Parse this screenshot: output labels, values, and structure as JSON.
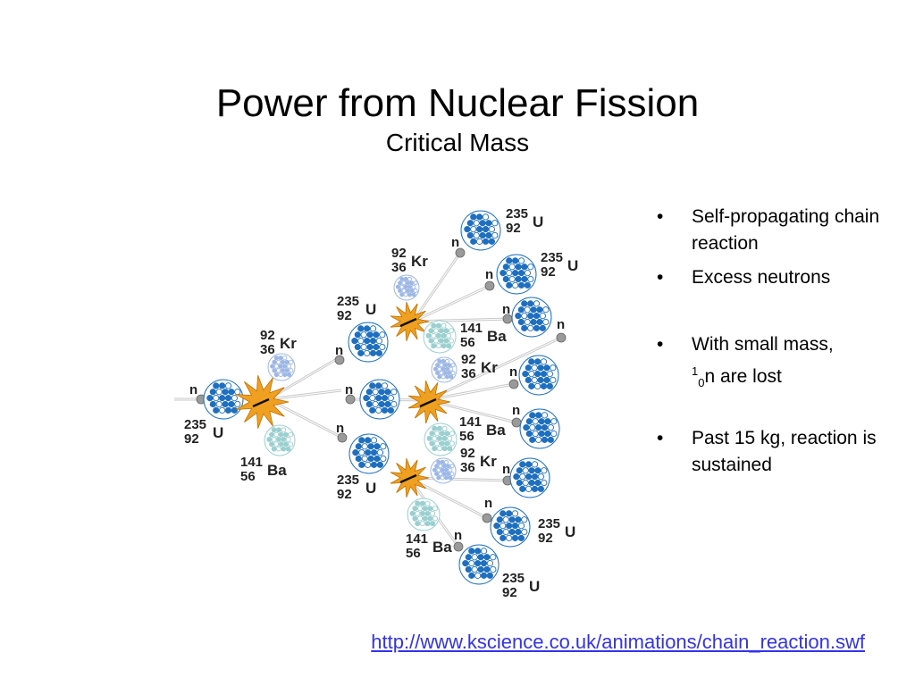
{
  "slide": {
    "title": "Power from Nuclear Fission",
    "subtitle": "Critical Mass",
    "link": "http://www.kscience.co.uk/animations/chain_reaction.swf"
  },
  "bullets": [
    {
      "text": "Self-propagating chain reaction"
    },
    {
      "text": "Excess neutrons"
    },
    {
      "pre": "With small mass, ",
      "sup": "1",
      "sub": "0",
      "post": "n are lost"
    },
    {
      "text": "Past 15 kg, reaction is sustained"
    }
  ],
  "diagram": {
    "neutron_label": "n",
    "uranium": {
      "mass": "235",
      "number": "92",
      "symbol": "U"
    },
    "krypton": {
      "mass": "92",
      "number": "36",
      "symbol": "Kr"
    },
    "barium": {
      "mass": "141",
      "number": "56",
      "symbol": "Ba"
    },
    "colors": {
      "uranium": "#1e6fc0",
      "krypton": "#9db8e6",
      "barium": "#9ccfd0",
      "flash": "#f0a020",
      "neutron": "#9a9a9a"
    }
  }
}
